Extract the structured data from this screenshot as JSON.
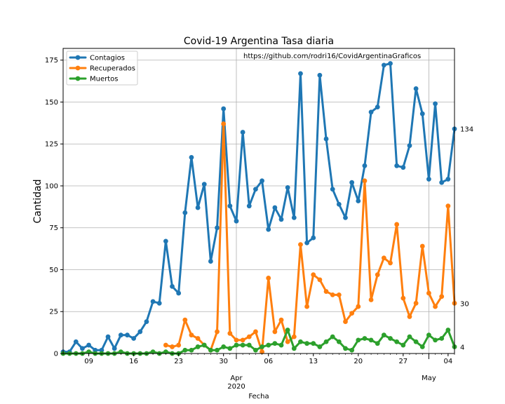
{
  "chart_data": {
    "type": "line",
    "title": "Covid-19 Argentina Tasa diaria",
    "annotation": "https://github.com/rodri16/CovidArgentinaGraficos",
    "xlabel": "Fecha",
    "ylabel": "Cantidad",
    "ylim": [
      0,
      182
    ],
    "yticks": [
      0,
      25,
      50,
      75,
      100,
      125,
      150,
      175
    ],
    "xlim": [
      "2020-03-05",
      "2020-05-05"
    ],
    "xticks": [
      {
        "date": "2020-03-09",
        "label": "09"
      },
      {
        "date": "2020-03-16",
        "label": "16"
      },
      {
        "date": "2020-03-23",
        "label": "23"
      },
      {
        "date": "2020-03-30",
        "label": "30"
      },
      {
        "date": "2020-04-06",
        "label": "06"
      },
      {
        "date": "2020-04-13",
        "label": "13"
      },
      {
        "date": "2020-04-20",
        "label": "20"
      },
      {
        "date": "2020-04-27",
        "label": "27"
      },
      {
        "date": "2020-05-04",
        "label": "04"
      }
    ],
    "month_ticks": [
      {
        "date": "2020-04-01",
        "label": "Apr",
        "sublabel": "2020"
      },
      {
        "date": "2020-05-01",
        "label": "May",
        "sublabel": ""
      }
    ],
    "grid": true,
    "legend": "top-left",
    "series": [
      {
        "name": "Contagios",
        "color": "#1f77b4",
        "start": "2020-03-05",
        "values": [
          1,
          1,
          7,
          3,
          5,
          2,
          2,
          10,
          3,
          11,
          11,
          9,
          13,
          19,
          31,
          30,
          67,
          40,
          36,
          84,
          117,
          87,
          101,
          55,
          75,
          146,
          88,
          79,
          132,
          88,
          98,
          103,
          74,
          87,
          80,
          99,
          81,
          167,
          66,
          69,
          166,
          128,
          98,
          89,
          81,
          102,
          91,
          112,
          144,
          147,
          172,
          173,
          112,
          111,
          124,
          158,
          143,
          104,
          149,
          102,
          104,
          134
        ],
        "end_label": "134"
      },
      {
        "name": "Recuperados",
        "color": "#ff7f0e",
        "start": "2020-03-21",
        "values": [
          5,
          4,
          5,
          20,
          11,
          9,
          5,
          2,
          13,
          137,
          12,
          8,
          8,
          10,
          13,
          1,
          45,
          13,
          20,
          7,
          10,
          65,
          28,
          47,
          44,
          37,
          35,
          35,
          19,
          24,
          28,
          103,
          32,
          47,
          57,
          54,
          77,
          33,
          22,
          30,
          64,
          36,
          28,
          34,
          88,
          30
        ],
        "end_label": "30"
      },
      {
        "name": "Muertos",
        "color": "#2ca02c",
        "start": "2020-03-05",
        "values": [
          0,
          0,
          0,
          0,
          1,
          0,
          0,
          0,
          0,
          1,
          0,
          0,
          0,
          0,
          1,
          0,
          1,
          0,
          0,
          2,
          2,
          4,
          5,
          2,
          2,
          4,
          3,
          5,
          5,
          5,
          2,
          4,
          5,
          6,
          5,
          14,
          3,
          7,
          6,
          6,
          4,
          7,
          10,
          7,
          3,
          2,
          8,
          9,
          8,
          6,
          11,
          9,
          7,
          5,
          10,
          7,
          4,
          11,
          8,
          9,
          14,
          4
        ],
        "end_label": "4"
      }
    ]
  }
}
